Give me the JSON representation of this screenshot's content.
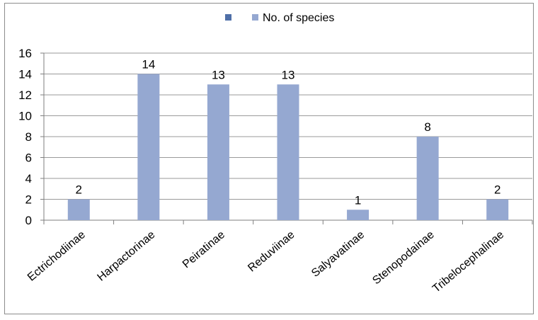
{
  "chart_data": {
    "type": "bar",
    "categories": [
      "Ectrichodiinae",
      "Harpactorinae",
      "Peiratinae",
      "Reduviinae",
      "Salyavatinae",
      "Stenopodainae",
      "Tribelocephalinae"
    ],
    "series": [
      {
        "name": "No. of species",
        "values": [
          2,
          14,
          13,
          13,
          1,
          8,
          2
        ],
        "color": "#95a8d1"
      }
    ],
    "legend_entries": [
      {
        "label": "",
        "color": "#4f6fa8"
      },
      {
        "label": "No. of species",
        "color": "#95a8d1"
      }
    ],
    "title": "",
    "xlabel": "",
    "ylabel": "",
    "ylim": [
      0,
      16
    ],
    "yticks": [
      0,
      2,
      4,
      6,
      8,
      10,
      12,
      14,
      16
    ],
    "grid": true,
    "legend_position": "top-center",
    "data_labels": true
  }
}
